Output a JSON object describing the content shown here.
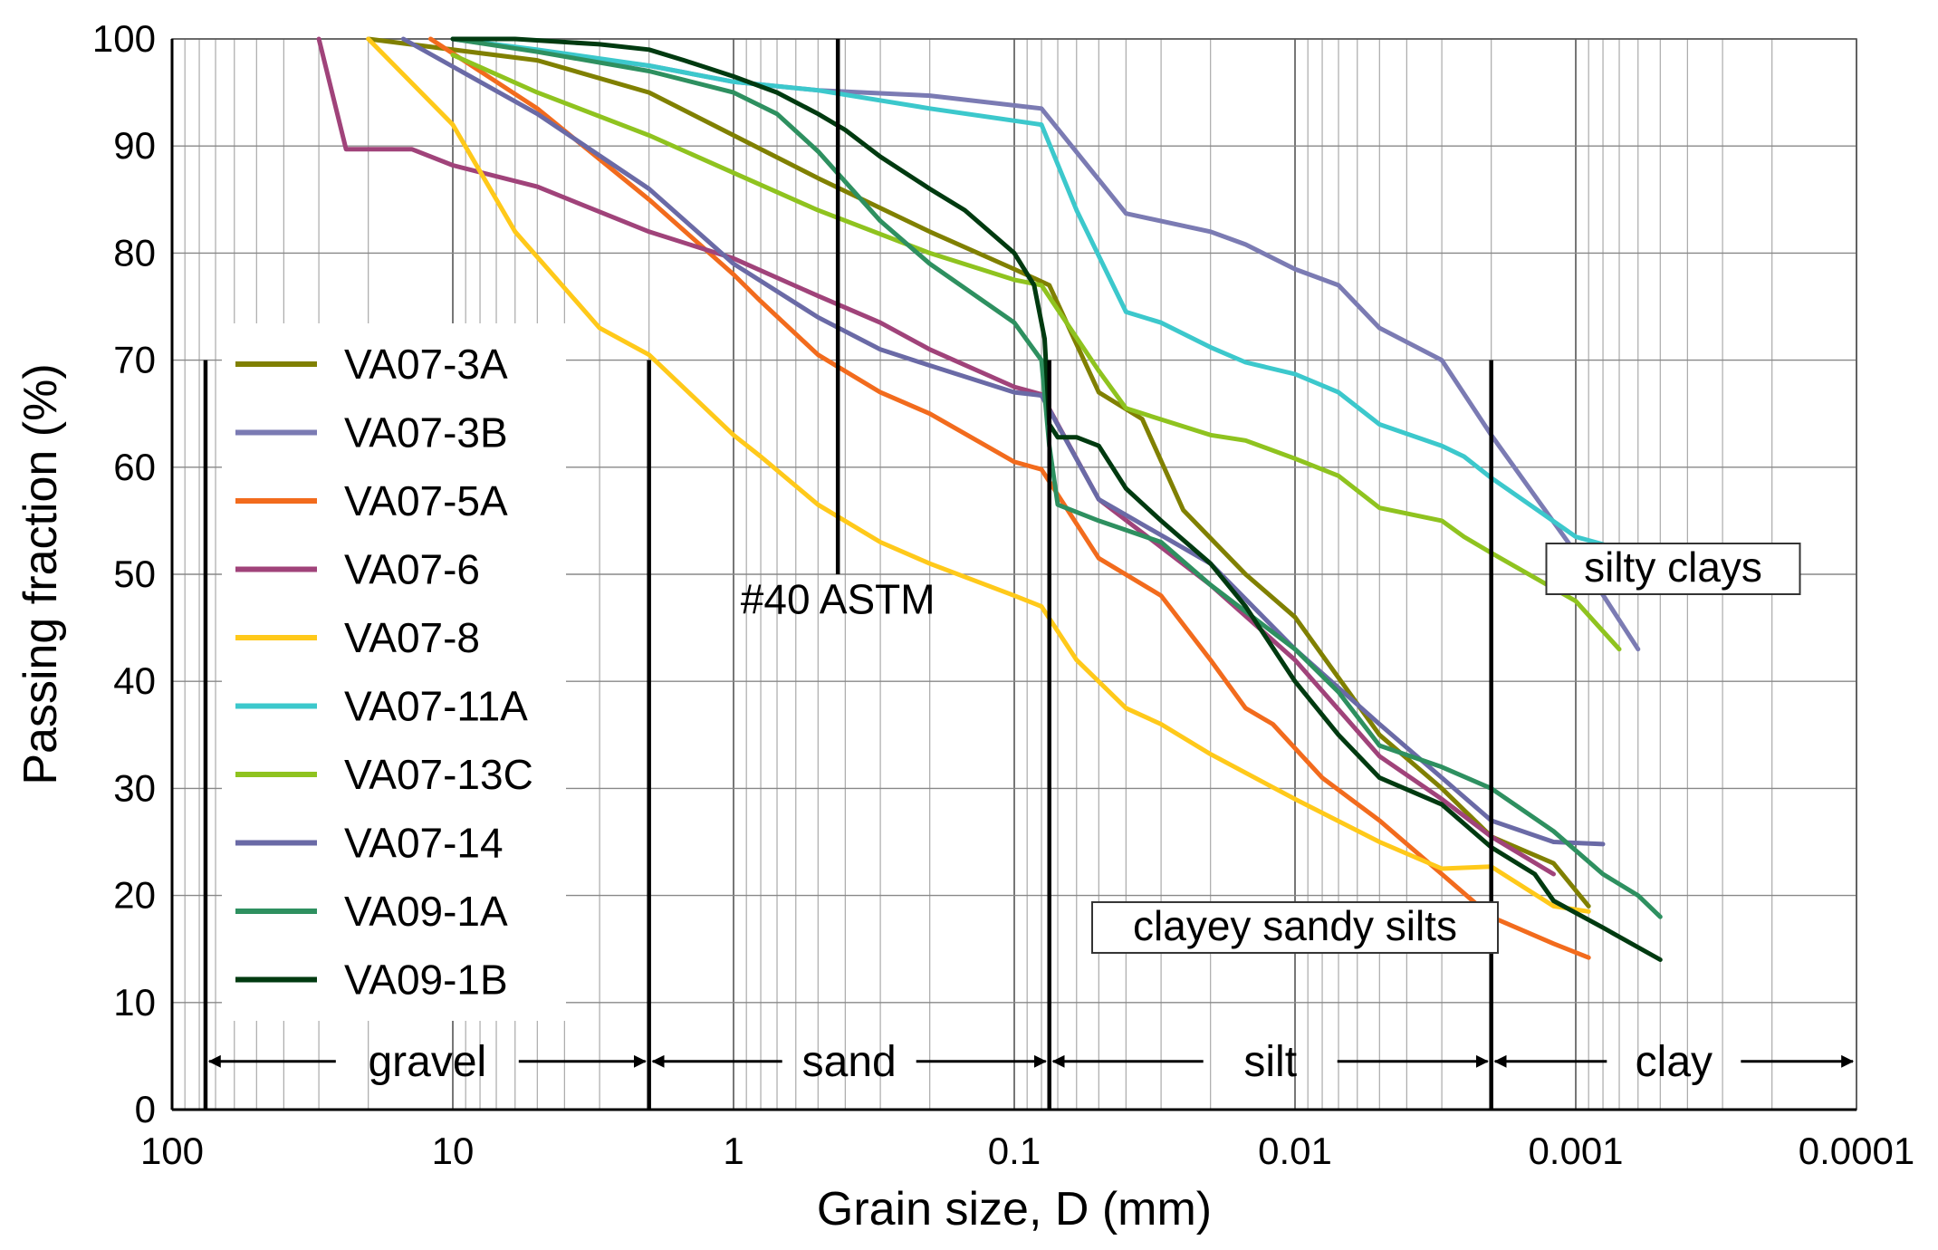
{
  "chart_data": {
    "type": "line",
    "title": "",
    "xlabel": "Grain size, D (mm)",
    "ylabel": "Passing fraction (%)",
    "x_scale": "log",
    "x_reversed": true,
    "xlim": [
      100,
      0.0001
    ],
    "ylim": [
      0,
      100
    ],
    "grid": true,
    "x_ticks": [
      100,
      10,
      1,
      0.1,
      0.01,
      0.001,
      0.0001
    ],
    "x_tick_labels": [
      "100",
      "10",
      "1",
      "0.1",
      "0.01",
      "0.001",
      "0.0001"
    ],
    "y_ticks": [
      0,
      10,
      20,
      30,
      40,
      50,
      60,
      70,
      80,
      90,
      100
    ],
    "y_tick_labels": [
      "0",
      "10",
      "20",
      "30",
      "40",
      "50",
      "60",
      "70",
      "80",
      "90",
      "100"
    ],
    "legend_position": "left",
    "boundaries": [
      {
        "x": 76,
        "y_top": 70
      },
      {
        "x": 2,
        "y_top": 70
      },
      {
        "x": 0.425,
        "y_top": 100
      },
      {
        "x": 0.075,
        "y_top": 70
      },
      {
        "x": 0.002,
        "y_top": 70
      }
    ],
    "regions": [
      {
        "label": "gravel",
        "from": 76,
        "to": 2
      },
      {
        "label": "sand",
        "from": 2,
        "to": 0.075
      },
      {
        "label": "silt",
        "from": 0.075,
        "to": 0.002
      },
      {
        "label": "clay",
        "from": 0.002,
        "to": 0.0001
      }
    ],
    "annotations": [
      {
        "text": "#40 ASTM",
        "x": 0.425,
        "y": 47,
        "boxed": false
      },
      {
        "text": "silty clays",
        "x": 0.00045,
        "y": 50,
        "boxed": true
      },
      {
        "text": "clayey sandy silts",
        "x": 0.01,
        "y": 16.5,
        "boxed": true
      }
    ],
    "series": [
      {
        "name": "VA07-3A",
        "color": "#808000",
        "points": [
          [
            20,
            100
          ],
          [
            5,
            98
          ],
          [
            2,
            95
          ],
          [
            1,
            91
          ],
          [
            0.5,
            87
          ],
          [
            0.2,
            82
          ],
          [
            0.1,
            78.5
          ],
          [
            0.075,
            77
          ],
          [
            0.05,
            67
          ],
          [
            0.035,
            64.5
          ],
          [
            0.025,
            56
          ],
          [
            0.015,
            50
          ],
          [
            0.01,
            46
          ],
          [
            0.005,
            35
          ],
          [
            0.003,
            30
          ],
          [
            0.002,
            25.5
          ],
          [
            0.0012,
            23
          ],
          [
            0.0009,
            19
          ]
        ]
      },
      {
        "name": "VA07-3B",
        "color": "#7b7bb3",
        "points": [
          [
            10,
            100
          ],
          [
            4,
            98.5
          ],
          [
            2,
            97.5
          ],
          [
            1,
            96
          ],
          [
            0.5,
            95.2
          ],
          [
            0.2,
            94.7
          ],
          [
            0.08,
            93.5
          ],
          [
            0.04,
            83.7
          ],
          [
            0.02,
            82
          ],
          [
            0.015,
            80.8
          ],
          [
            0.01,
            78.5
          ],
          [
            0.007,
            77
          ],
          [
            0.005,
            73
          ],
          [
            0.003,
            70
          ],
          [
            0.002,
            63
          ],
          [
            0.001,
            52
          ],
          [
            0.0006,
            43
          ]
        ]
      },
      {
        "name": "VA07-5A",
        "color": "#f26b1d",
        "points": [
          [
            12,
            100
          ],
          [
            5,
            93.5
          ],
          [
            2,
            85
          ],
          [
            1,
            78
          ],
          [
            0.8,
            75.5
          ],
          [
            0.5,
            70.5
          ],
          [
            0.3,
            67
          ],
          [
            0.2,
            65
          ],
          [
            0.1,
            60.5
          ],
          [
            0.08,
            59.8
          ],
          [
            0.05,
            51.5
          ],
          [
            0.03,
            48
          ],
          [
            0.02,
            42
          ],
          [
            0.015,
            37.5
          ],
          [
            0.012,
            36
          ],
          [
            0.008,
            31
          ],
          [
            0.005,
            27
          ],
          [
            0.003,
            22
          ],
          [
            0.002,
            18
          ],
          [
            0.0012,
            15.5
          ],
          [
            0.0009,
            14.2
          ]
        ]
      },
      {
        "name": "VA07-6",
        "color": "#a0437a",
        "points": [
          [
            30,
            100
          ],
          [
            24,
            89.7
          ],
          [
            14,
            89.7
          ],
          [
            10,
            88.2
          ],
          [
            5,
            86.2
          ],
          [
            2,
            82
          ],
          [
            1,
            79.5
          ],
          [
            0.5,
            76
          ],
          [
            0.3,
            73.5
          ],
          [
            0.2,
            71
          ],
          [
            0.1,
            67.5
          ],
          [
            0.08,
            66.8
          ],
          [
            0.05,
            57
          ],
          [
            0.02,
            49
          ],
          [
            0.01,
            42
          ],
          [
            0.005,
            33
          ],
          [
            0.003,
            29
          ],
          [
            0.002,
            25.5
          ],
          [
            0.0012,
            22
          ]
        ]
      },
      {
        "name": "VA07-8",
        "color": "#ffc91a",
        "points": [
          [
            20,
            100
          ],
          [
            10,
            92
          ],
          [
            6,
            82
          ],
          [
            3,
            73
          ],
          [
            2,
            70.5
          ],
          [
            1,
            63
          ],
          [
            0.8,
            61
          ],
          [
            0.5,
            56.5
          ],
          [
            0.3,
            53
          ],
          [
            0.2,
            51
          ],
          [
            0.1,
            48
          ],
          [
            0.08,
            47
          ],
          [
            0.06,
            42
          ],
          [
            0.04,
            37.5
          ],
          [
            0.03,
            36
          ],
          [
            0.02,
            33.2
          ],
          [
            0.01,
            29
          ],
          [
            0.005,
            25
          ],
          [
            0.003,
            22.5
          ],
          [
            0.002,
            22.7
          ],
          [
            0.0012,
            19
          ],
          [
            0.0009,
            18.5
          ]
        ]
      },
      {
        "name": "VA07-11A",
        "color": "#3cc8cc",
        "points": [
          [
            10,
            100
          ],
          [
            5,
            99
          ],
          [
            2,
            97.5
          ],
          [
            1,
            96
          ],
          [
            0.5,
            95.2
          ],
          [
            0.2,
            93.5
          ],
          [
            0.08,
            92
          ],
          [
            0.06,
            84
          ],
          [
            0.04,
            74.5
          ],
          [
            0.03,
            73.5
          ],
          [
            0.02,
            71.2
          ],
          [
            0.015,
            69.8
          ],
          [
            0.01,
            68.7
          ],
          [
            0.007,
            67
          ],
          [
            0.005,
            64
          ],
          [
            0.003,
            62
          ],
          [
            0.0025,
            61
          ],
          [
            0.002,
            59
          ],
          [
            0.001,
            53.5
          ],
          [
            0.0008,
            52.8
          ]
        ]
      },
      {
        "name": "VA07-13C",
        "color": "#8fc31f",
        "points": [
          [
            10,
            98.5
          ],
          [
            5,
            95
          ],
          [
            2,
            91
          ],
          [
            1,
            87.5
          ],
          [
            0.5,
            84
          ],
          [
            0.2,
            80
          ],
          [
            0.1,
            77.5
          ],
          [
            0.08,
            77
          ],
          [
            0.05,
            69
          ],
          [
            0.04,
            65.5
          ],
          [
            0.02,
            63
          ],
          [
            0.015,
            62.5
          ],
          [
            0.01,
            60.8
          ],
          [
            0.007,
            59.2
          ],
          [
            0.005,
            56.2
          ],
          [
            0.003,
            55
          ],
          [
            0.0025,
            53.5
          ],
          [
            0.002,
            52
          ],
          [
            0.001,
            47.5
          ],
          [
            0.0007,
            43
          ]
        ]
      },
      {
        "name": "VA07-14",
        "color": "#6a6aa6",
        "points": [
          [
            15,
            100
          ],
          [
            5,
            93
          ],
          [
            2,
            86
          ],
          [
            1,
            79
          ],
          [
            0.5,
            74
          ],
          [
            0.3,
            71
          ],
          [
            0.2,
            69.5
          ],
          [
            0.1,
            67
          ],
          [
            0.08,
            66.7
          ],
          [
            0.05,
            57
          ],
          [
            0.02,
            51
          ],
          [
            0.01,
            43
          ],
          [
            0.005,
            36
          ],
          [
            0.003,
            31
          ],
          [
            0.002,
            27
          ],
          [
            0.0012,
            25
          ],
          [
            0.0008,
            24.8
          ]
        ]
      },
      {
        "name": "VA09-1A",
        "color": "#2e9060",
        "points": [
          [
            10,
            100
          ],
          [
            5,
            98.8
          ],
          [
            2,
            97
          ],
          [
            1,
            95
          ],
          [
            0.7,
            93
          ],
          [
            0.5,
            89.5
          ],
          [
            0.3,
            83
          ],
          [
            0.2,
            79
          ],
          [
            0.1,
            73.5
          ],
          [
            0.08,
            70
          ],
          [
            0.075,
            62
          ],
          [
            0.07,
            56.5
          ],
          [
            0.05,
            55
          ],
          [
            0.03,
            53
          ],
          [
            0.02,
            49
          ],
          [
            0.01,
            43
          ],
          [
            0.007,
            39
          ],
          [
            0.005,
            34
          ],
          [
            0.003,
            32
          ],
          [
            0.002,
            30
          ],
          [
            0.0012,
            26
          ],
          [
            0.0008,
            22
          ],
          [
            0.0006,
            20
          ],
          [
            0.0005,
            18
          ]
        ]
      },
      {
        "name": "VA09-1B",
        "color": "#003a10",
        "points": [
          [
            10,
            100
          ],
          [
            6,
            100
          ],
          [
            3,
            99.5
          ],
          [
            2,
            99
          ],
          [
            1.5,
            98
          ],
          [
            1,
            96.5
          ],
          [
            0.7,
            95
          ],
          [
            0.5,
            93
          ],
          [
            0.4,
            91.5
          ],
          [
            0.3,
            89
          ],
          [
            0.2,
            86
          ],
          [
            0.15,
            84
          ],
          [
            0.1,
            80
          ],
          [
            0.085,
            77
          ],
          [
            0.078,
            72
          ],
          [
            0.075,
            64
          ],
          [
            0.07,
            62.8
          ],
          [
            0.06,
            62.8
          ],
          [
            0.05,
            62
          ],
          [
            0.04,
            58
          ],
          [
            0.03,
            55
          ],
          [
            0.02,
            51
          ],
          [
            0.015,
            47
          ],
          [
            0.01,
            40
          ],
          [
            0.007,
            35
          ],
          [
            0.005,
            31
          ],
          [
            0.003,
            28.5
          ],
          [
            0.002,
            24.5
          ],
          [
            0.0014,
            22
          ],
          [
            0.0012,
            19.5
          ],
          [
            0.0008,
            17
          ],
          [
            0.0005,
            14
          ]
        ]
      }
    ]
  }
}
